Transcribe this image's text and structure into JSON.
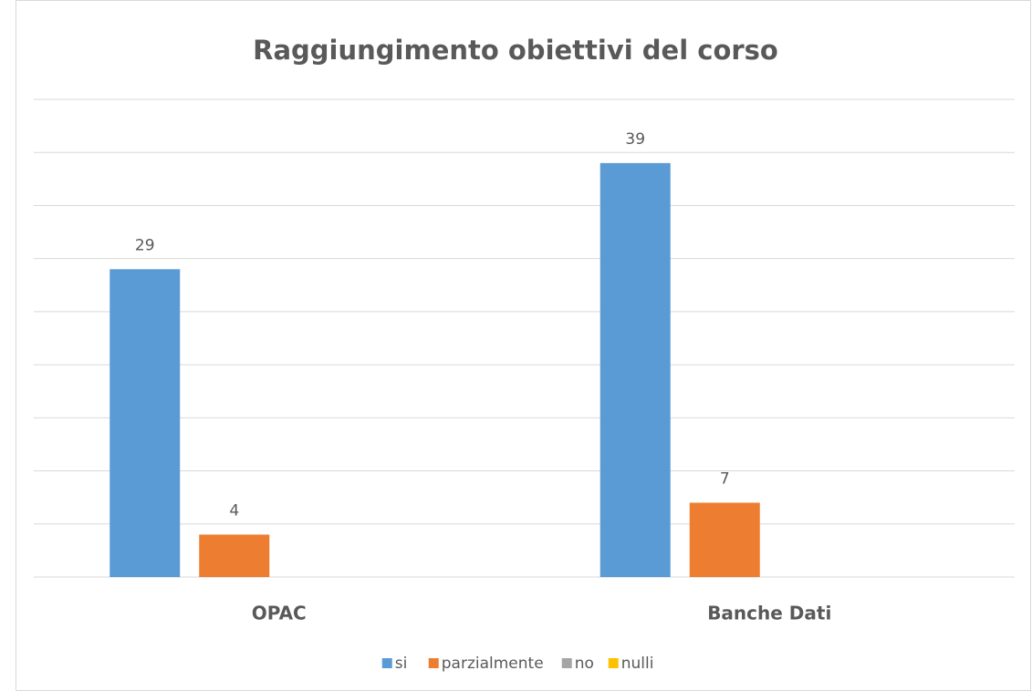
{
  "chart_data": {
    "type": "bar",
    "title": "Raggiungimento obiettivi del corso",
    "categories": [
      "OPAC",
      "Banche Dati"
    ],
    "series": [
      {
        "name": "si",
        "color": "#5b9bd5",
        "values": [
          29,
          39
        ],
        "data_labels": true
      },
      {
        "name": "parzialmente",
        "color": "#ed7d31",
        "values": [
          4,
          7
        ],
        "data_labels": true
      },
      {
        "name": "no",
        "color": "#a5a5a5",
        "values": [
          0,
          0
        ],
        "data_labels": false
      },
      {
        "name": "nulli",
        "color": "#ffc000",
        "values": [
          0,
          0
        ],
        "data_labels": false
      }
    ],
    "ylim": [
      0,
      45
    ],
    "yticks": [
      0,
      5,
      10,
      15,
      20,
      25,
      30,
      35,
      40,
      45
    ],
    "grid": true,
    "legend": "bottom"
  }
}
